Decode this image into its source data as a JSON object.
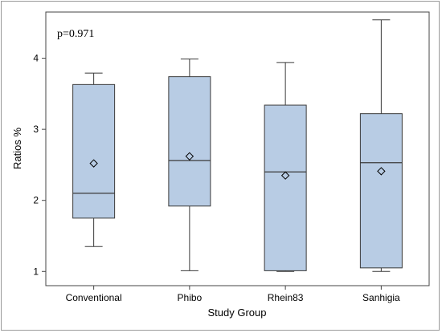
{
  "chart_data": {
    "type": "box",
    "title": "",
    "annotation": "p=0.971",
    "xlabel": "Study Group",
    "ylabel": "Ratios %",
    "ylim": [
      0.8,
      4.65
    ],
    "yticks": [
      1,
      2,
      3,
      4
    ],
    "grid": false,
    "box_color": "#b8cce4",
    "edge_color": "#3a3a3a",
    "categories": [
      "Conventional",
      "Phibo",
      "Rhein83",
      "Sanhigia"
    ],
    "boxes": [
      {
        "min": 1.35,
        "q1": 1.75,
        "median": 2.1,
        "q3": 3.63,
        "max": 3.79,
        "mean": 2.52
      },
      {
        "min": 1.01,
        "q1": 1.92,
        "median": 2.56,
        "q3": 3.74,
        "max": 3.99,
        "mean": 2.62
      },
      {
        "min": 1.0,
        "q1": 1.01,
        "median": 2.4,
        "q3": 3.34,
        "max": 3.94,
        "mean": 2.35
      },
      {
        "min": 1.0,
        "q1": 1.05,
        "median": 2.53,
        "q3": 3.22,
        "max": 4.54,
        "mean": 2.41
      }
    ]
  }
}
